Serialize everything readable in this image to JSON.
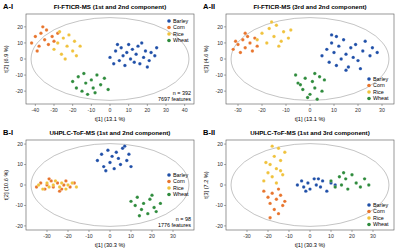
{
  "chart_data": [
    {
      "type": "scatter",
      "label": "A-I",
      "title": "FI-FTICR-MS (1st and 2nd component)",
      "x_label": "t[1] (13.1 %)",
      "y_label": "t[2] (6.9 %)",
      "xlim": [
        -45,
        45
      ],
      "ylim": [
        -28,
        28
      ],
      "xticks": [
        -40,
        -30,
        -20,
        -10,
        0,
        10,
        20,
        30,
        40
      ],
      "yticks": [
        -20,
        -10,
        0,
        10,
        20
      ],
      "grid": false,
      "legend": "upper right",
      "marker": "circle",
      "annotations": [
        "n = 392",
        "7697 features"
      ],
      "series": [
        {
          "name": "Barley",
          "color": "#1f4fa8",
          "x": [
            0,
            2,
            3,
            5,
            6,
            7,
            8,
            9,
            10,
            11,
            12,
            13,
            14,
            15,
            16,
            18,
            19,
            21,
            22,
            24,
            25,
            4,
            17,
            20
          ],
          "y": [
            1,
            -3,
            5,
            -1,
            7,
            2,
            -4,
            4,
            9,
            0,
            6,
            -2,
            3,
            8,
            -3,
            1,
            5,
            -1,
            4,
            2,
            7,
            9,
            10,
            -5
          ]
        },
        {
          "name": "Corn",
          "color": "#e8742c",
          "x": [
            -42,
            -40,
            -38,
            -37,
            -35,
            -34,
            -33,
            -31,
            -30,
            -28,
            -39,
            -36
          ],
          "y": [
            10,
            14,
            8,
            16,
            12,
            18,
            9,
            14,
            11,
            16,
            5,
            20
          ]
        },
        {
          "name": "Rice",
          "color": "#f0c23c",
          "x": [
            -30,
            -28,
            -26,
            -25,
            -23,
            -22,
            -20,
            -19,
            -18,
            -16,
            -24,
            -27
          ],
          "y": [
            6,
            10,
            3,
            13,
            8,
            15,
            5,
            11,
            2,
            8,
            0,
            17
          ]
        },
        {
          "name": "Wheat",
          "color": "#2e8b3c",
          "x": [
            -20,
            -18,
            -17,
            -15,
            -13,
            -12,
            -10,
            -9,
            -7,
            -5,
            -3,
            -1,
            -14,
            -8
          ],
          "y": [
            -14,
            -18,
            -11,
            -20,
            -15,
            -22,
            -13,
            -18,
            -10,
            -16,
            -12,
            -19,
            -9,
            -21
          ]
        }
      ]
    },
    {
      "type": "scatter",
      "label": "A-II",
      "title": "FI-FTICR-MS (3rd and 2nd component)",
      "x_label": "t[1] (13.1 %)",
      "y_label": "t[3] (4.6 %)",
      "xlim": [
        -35,
        35
      ],
      "ylim": [
        -28,
        28
      ],
      "xticks": [
        -30,
        -20,
        -10,
        0,
        10,
        20,
        30
      ],
      "yticks": [
        -20,
        -10,
        0,
        10,
        20
      ],
      "grid": false,
      "legend": "lower right",
      "marker": "circle",
      "series": [
        {
          "name": "Barley",
          "color": "#1f4fa8",
          "x": [
            5,
            7,
            8,
            9,
            10,
            11,
            12,
            13,
            14,
            15,
            16,
            17,
            18,
            19,
            20,
            22,
            23,
            25,
            26,
            28,
            11,
            15,
            21,
            9
          ],
          "y": [
            2,
            6,
            -2,
            10,
            4,
            -4,
            8,
            0,
            12,
            3,
            -5,
            7,
            1,
            9,
            -1,
            5,
            11,
            2,
            7,
            4,
            14,
            -7,
            -6,
            15
          ]
        },
        {
          "name": "Corn",
          "color": "#e8742c",
          "x": [
            -32,
            -30,
            -29,
            -28,
            -27,
            -26,
            -25,
            -24,
            -23,
            -22,
            -31,
            -27
          ],
          "y": [
            6,
            9,
            4,
            12,
            7,
            14,
            10,
            5,
            13,
            8,
            11,
            16
          ]
        },
        {
          "name": "Rice",
          "color": "#f0c23c",
          "x": [
            -22,
            -20,
            -18,
            -17,
            -15,
            -14,
            -12,
            -11,
            -9,
            -8,
            -16,
            -13
          ],
          "y": [
            12,
            16,
            10,
            19,
            14,
            21,
            11,
            17,
            13,
            18,
            23,
            8
          ]
        },
        {
          "name": "Wheat",
          "color": "#2e8b3c",
          "x": [
            -6,
            -5,
            -3,
            -2,
            0,
            1,
            2,
            3,
            4,
            5,
            -1,
            2,
            -4,
            6
          ],
          "y": [
            -10,
            -15,
            -19,
            -12,
            -22,
            -14,
            -18,
            -25,
            -11,
            -20,
            -24,
            -9,
            -16,
            -13
          ]
        }
      ]
    },
    {
      "type": "scatter",
      "label": "B-I",
      "title": "UHPLC-ToF-MS (1st and 2nd component)",
      "x_label": "t[1] (30.3 %)",
      "y_label": "t[2] (10.6 %)",
      "xlim": [
        -40,
        40
      ],
      "ylim": [
        -22,
        22
      ],
      "xticks": [
        -30,
        -20,
        -10,
        0,
        10,
        20,
        30
      ],
      "yticks": [
        -20,
        -10,
        0,
        10,
        20
      ],
      "grid": false,
      "legend": "right",
      "marker": "circle",
      "annotations": [
        "n = 98",
        "1776 features"
      ],
      "series": [
        {
          "name": "Barley",
          "color": "#1f4fa8",
          "x": [
            -6,
            -4,
            -3,
            -1,
            0,
            1,
            2,
            3,
            4,
            5,
            6,
            8,
            9,
            10,
            -2,
            7
          ],
          "y": [
            12,
            15,
            9,
            17,
            11,
            14,
            8,
            16,
            13,
            10,
            18,
            12,
            15,
            9,
            7,
            19
          ]
        },
        {
          "name": "Corn",
          "color": "#e8742c",
          "x": [
            -35,
            -33,
            -31,
            -30,
            -28,
            -27,
            -25,
            -24,
            -22,
            -21,
            -19,
            -17,
            -29,
            -23
          ],
          "y": [
            -1,
            1,
            -2,
            0,
            2,
            -1,
            1,
            -3,
            0,
            2,
            -1,
            1,
            3,
            -2
          ]
        },
        {
          "name": "Rice",
          "color": "#f0c23c",
          "x": [
            -34,
            -32,
            -30,
            -29,
            -27,
            -26,
            -24,
            -23,
            -21,
            -20,
            -18,
            -16
          ],
          "y": [
            0,
            -2,
            1,
            -1,
            0,
            2,
            -1,
            1,
            -2,
            0,
            1,
            -1
          ]
        },
        {
          "name": "Wheat",
          "color": "#2e8b3c",
          "x": [
            10,
            12,
            13,
            15,
            16,
            18,
            19,
            21,
            22,
            24,
            14,
            20
          ],
          "y": [
            -8,
            -10,
            -6,
            -12,
            -9,
            -14,
            -7,
            -11,
            -13,
            -9,
            -15,
            -5
          ]
        }
      ]
    },
    {
      "type": "scatter",
      "label": "B-II",
      "title": "UHPLC-ToF-MS (1st and 3rd component)",
      "x_label": "t[1] (30.3 %)",
      "y_label": "t[3] (7.2 %)",
      "xlim": [
        -40,
        40
      ],
      "ylim": [
        -22,
        22
      ],
      "xticks": [
        -30,
        -20,
        -10,
        0,
        10,
        20,
        30
      ],
      "yticks": [
        -20,
        -10,
        0,
        10,
        20
      ],
      "grid": false,
      "legend": "lower right",
      "marker": "circle",
      "series": [
        {
          "name": "Barley",
          "color": "#1f4fa8",
          "x": [
            -6,
            -4,
            -3,
            -1,
            0,
            2,
            3,
            5,
            6,
            8,
            10,
            12,
            -2,
            4
          ],
          "y": [
            0,
            2,
            -1,
            1,
            -2,
            3,
            0,
            -1,
            2,
            -3,
            1,
            0,
            -3,
            3
          ]
        },
        {
          "name": "Corn",
          "color": "#e8742c",
          "x": [
            -22,
            -20,
            -19,
            -18,
            -17,
            -16,
            -15,
            -14,
            -13,
            -12,
            -19,
            -15
          ],
          "y": [
            -3,
            -6,
            -9,
            -4,
            -12,
            -7,
            -14,
            -5,
            -10,
            -8,
            -16,
            -2
          ]
        },
        {
          "name": "Rice",
          "color": "#f0c23c",
          "x": [
            -22,
            -20,
            -19,
            -18,
            -17,
            -16,
            -15,
            -14,
            -13,
            -12,
            -21,
            -18,
            -16,
            -14
          ],
          "y": [
            2,
            6,
            10,
            4,
            14,
            8,
            18,
            12,
            5,
            16,
            11,
            19,
            1,
            7
          ]
        },
        {
          "name": "Wheat",
          "color": "#2e8b3c",
          "x": [
            10,
            12,
            14,
            15,
            17,
            18,
            20,
            22,
            24,
            26,
            28,
            16
          ],
          "y": [
            2,
            -1,
            4,
            0,
            3,
            -2,
            5,
            1,
            -1,
            3,
            0,
            6
          ]
        }
      ]
    }
  ]
}
